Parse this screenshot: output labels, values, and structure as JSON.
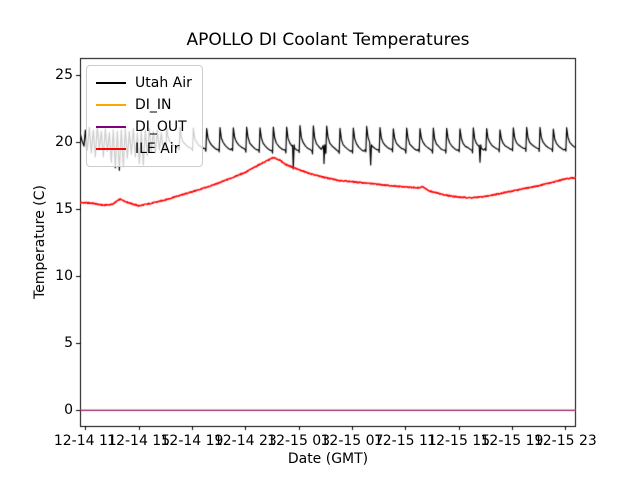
{
  "chart_data": {
    "type": "line",
    "title": "APOLLO DI Coolant Temperatures",
    "xlabel": "Date (GMT)",
    "ylabel": "Temperature (C)",
    "grid": false,
    "background": "#ffffff",
    "xlim_hours": [
      10.6,
      47.8
    ],
    "ylim": [
      -1.16,
      26.27
    ],
    "x_ticks_hours": [
      11,
      15,
      19,
      23,
      27,
      31,
      35,
      39,
      43,
      47
    ],
    "x_tick_labels": [
      "12-14 11",
      "12-14 15",
      "12-14 19",
      "12-14 23",
      "12-15 03",
      "12-15 07",
      "12-15 11",
      "12-15 15",
      "12-15 19",
      "12-15 23"
    ],
    "y_ticks": [
      0,
      5,
      10,
      15,
      20,
      25
    ],
    "y_tick_labels": [
      "0",
      "5",
      "10",
      "15",
      "20",
      "25"
    ],
    "legend": {
      "position": "upper left",
      "items": [
        {
          "label": "Utah Air",
          "color": "#000000"
        },
        {
          "label": "DI_IN",
          "color": "#ffa500"
        },
        {
          "label": "DI_OUT",
          "color": "#800080"
        },
        {
          "label": "ILE Air",
          "color": "#ff0000"
        }
      ]
    },
    "series": [
      {
        "name": "Utah Air",
        "color": "#000000",
        "shape": "sawtooth",
        "irregular_points": [
          [
            10.6,
            20.7
          ],
          [
            10.75,
            20.1
          ],
          [
            10.9,
            19.7
          ],
          [
            11.0,
            20.9
          ],
          [
            11.15,
            19.4
          ],
          [
            11.3,
            21.1
          ],
          [
            11.45,
            19.2
          ],
          [
            11.6,
            20.9
          ],
          [
            11.75,
            18.9
          ],
          [
            11.9,
            21.2
          ],
          [
            12.05,
            19.4
          ],
          [
            12.2,
            20.8
          ],
          [
            12.35,
            18.9
          ],
          [
            12.5,
            21.0
          ],
          [
            12.65,
            19.3
          ],
          [
            12.8,
            20.7
          ],
          [
            12.95,
            18.5
          ],
          [
            13.1,
            20.9
          ],
          [
            13.25,
            18.1
          ],
          [
            13.4,
            20.8
          ],
          [
            13.55,
            17.9
          ],
          [
            13.7,
            20.9
          ],
          [
            13.85,
            18.2
          ],
          [
            14.0,
            21.0
          ],
          [
            14.15,
            18.8
          ],
          [
            14.3,
            20.8
          ],
          [
            14.45,
            19.1
          ],
          [
            14.6,
            21.0
          ],
          [
            14.75,
            18.9
          ],
          [
            14.9,
            20.7
          ],
          [
            15.05,
            18.4
          ],
          [
            15.2,
            20.8
          ],
          [
            15.35,
            18.3
          ],
          [
            15.5,
            20.9
          ],
          [
            15.65,
            19.0
          ],
          [
            15.8,
            21.0
          ],
          [
            15.95,
            19.3
          ],
          [
            16.1,
            20.8
          ],
          [
            16.25,
            19.2
          ],
          [
            16.4,
            20.9
          ],
          [
            16.55,
            19.4
          ],
          [
            16.7,
            20.7
          ],
          [
            16.85,
            19.5
          ]
        ],
        "cycle": {
          "start": 17.0,
          "end": 47.8,
          "period_h": 1.0
        },
        "peak_envelope": [
          [
            17,
            21.0
          ],
          [
            25,
            21.2
          ],
          [
            33,
            21.05
          ],
          [
            47.8,
            20.95
          ]
        ],
        "base_envelope": [
          [
            17,
            19.5
          ],
          [
            29,
            19.3
          ],
          [
            40,
            19.4
          ],
          [
            47.8,
            19.45
          ]
        ],
        "down_spikes": [
          [
            26.6,
            18.0
          ],
          [
            28.9,
            18.4
          ],
          [
            32.4,
            18.3
          ],
          [
            40.6,
            18.5
          ]
        ]
      },
      {
        "name": "DI_IN",
        "color": "#ffa500",
        "shape": "constant",
        "constant_value": 0.0
      },
      {
        "name": "DI_OUT",
        "color": "#800080",
        "shape": "constant",
        "constant_value": 0.0,
        "alpha": 0.8
      },
      {
        "name": "ILE Air",
        "color": "#ff0000",
        "shape": "keyframes",
        "noise": 0.1,
        "keyframes": [
          [
            10.6,
            15.5
          ],
          [
            11.5,
            15.45
          ],
          [
            12.3,
            15.3
          ],
          [
            13.0,
            15.35
          ],
          [
            13.6,
            15.75
          ],
          [
            14.2,
            15.5
          ],
          [
            15.0,
            15.25
          ],
          [
            16.0,
            15.45
          ],
          [
            17.0,
            15.7
          ],
          [
            18.0,
            16.0
          ],
          [
            19.0,
            16.3
          ],
          [
            20.0,
            16.6
          ],
          [
            21.0,
            16.95
          ],
          [
            22.0,
            17.35
          ],
          [
            23.0,
            17.75
          ],
          [
            24.0,
            18.3
          ],
          [
            24.6,
            18.6
          ],
          [
            25.1,
            18.85
          ],
          [
            25.6,
            18.65
          ],
          [
            26.0,
            18.35
          ],
          [
            27.0,
            17.95
          ],
          [
            28.0,
            17.6
          ],
          [
            29.0,
            17.35
          ],
          [
            30.0,
            17.15
          ],
          [
            31.0,
            17.05
          ],
          [
            32.0,
            16.95
          ],
          [
            33.0,
            16.85
          ],
          [
            34.0,
            16.75
          ],
          [
            35.0,
            16.65
          ],
          [
            36.0,
            16.6
          ],
          [
            36.3,
            16.7
          ],
          [
            36.7,
            16.4
          ],
          [
            37.0,
            16.3
          ],
          [
            38.0,
            16.05
          ],
          [
            39.0,
            15.9
          ],
          [
            40.0,
            15.85
          ],
          [
            41.0,
            15.95
          ],
          [
            42.0,
            16.15
          ],
          [
            43.0,
            16.35
          ],
          [
            44.0,
            16.55
          ],
          [
            45.0,
            16.75
          ],
          [
            46.0,
            17.0
          ],
          [
            47.0,
            17.25
          ],
          [
            47.8,
            17.35
          ]
        ]
      }
    ]
  }
}
